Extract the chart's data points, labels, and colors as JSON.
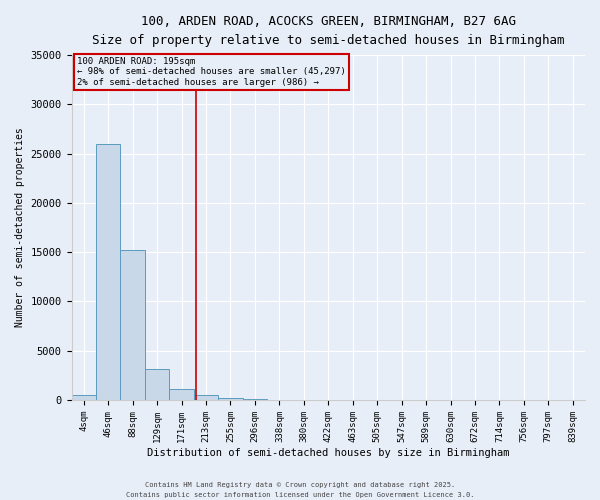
{
  "title_line1": "100, ARDEN ROAD, ACOCKS GREEN, BIRMINGHAM, B27 6AG",
  "title_line2": "Size of property relative to semi-detached houses in Birmingham",
  "xlabel": "Distribution of semi-detached houses by size in Birmingham",
  "ylabel": "Number of semi-detached properties",
  "bar_labels": [
    "4sqm",
    "46sqm",
    "88sqm",
    "129sqm",
    "171sqm",
    "213sqm",
    "255sqm",
    "296sqm",
    "338sqm",
    "380sqm",
    "422sqm",
    "463sqm",
    "505sqm",
    "547sqm",
    "589sqm",
    "630sqm",
    "672sqm",
    "714sqm",
    "756sqm",
    "797sqm",
    "839sqm"
  ],
  "bar_values": [
    500,
    26000,
    15200,
    3100,
    1100,
    500,
    200,
    100,
    0,
    0,
    0,
    0,
    0,
    0,
    0,
    0,
    0,
    0,
    0,
    0,
    0
  ],
  "bar_color": "#c8d8e8",
  "bar_edge_color": "#5a9bbf",
  "property_line_color": "#cc0000",
  "annotation_text": "100 ARDEN ROAD: 195sqm\n← 98% of semi-detached houses are smaller (45,297)\n2% of semi-detached houses are larger (986) →",
  "annotation_box_color": "#cc0000",
  "ylim": [
    0,
    35000
  ],
  "yticks": [
    0,
    5000,
    10000,
    15000,
    20000,
    25000,
    30000,
    35000
  ],
  "background_color": "#e8eef8",
  "footer_line1": "Contains HM Land Registry data © Crown copyright and database right 2025.",
  "footer_line2": "Contains public sector information licensed under the Open Government Licence 3.0."
}
